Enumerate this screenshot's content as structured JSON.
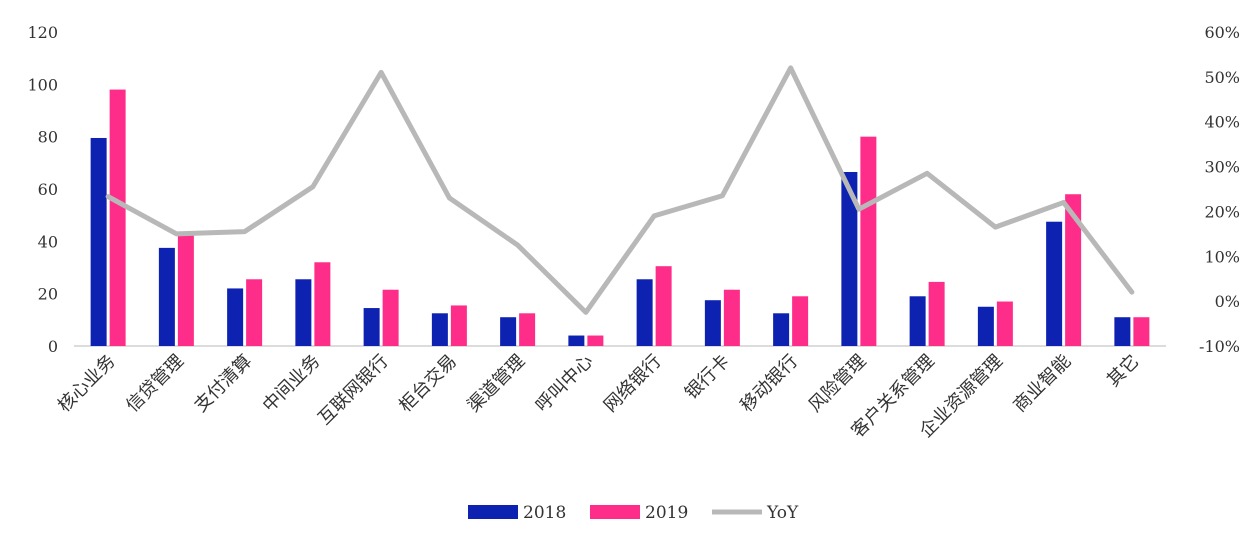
{
  "chart_data": {
    "type": "bar",
    "title": "",
    "xlabel": "",
    "ylabel": "",
    "categories": [
      "核心业务",
      "信贷管理",
      "支付清算",
      "中间业务",
      "互联网银行",
      "柜台交易",
      "渠道管理",
      "呼叫中心",
      "网络银行",
      "银行卡",
      "移动银行",
      "风险管理",
      "客户关系管理",
      "企业资源管理",
      "商业智能",
      "其它"
    ],
    "series": [
      {
        "name": "2018",
        "type": "bar",
        "axis": "left",
        "color": "#0d22b0",
        "values": [
          79.5,
          37.5,
          22,
          25.5,
          14.5,
          12.5,
          11,
          4,
          25.5,
          17.5,
          12.5,
          66.5,
          19,
          15,
          47.5,
          11
        ]
      },
      {
        "name": "2019",
        "type": "bar",
        "axis": "left",
        "color": "#ff2d8a",
        "values": [
          98,
          43,
          25.5,
          32,
          21.5,
          15.5,
          12.5,
          4,
          30.5,
          21.5,
          19,
          80,
          24.5,
          17,
          58,
          11
        ]
      },
      {
        "name": "YoY",
        "type": "line",
        "axis": "right",
        "color": "#b8b8b8",
        "values": [
          23.3,
          15.0,
          15.5,
          25.5,
          51.0,
          23.0,
          12.5,
          -2.5,
          19.0,
          23.5,
          52.0,
          20.5,
          28.5,
          16.5,
          22.0,
          2.0
        ]
      }
    ],
    "y_left": {
      "min": 0,
      "max": 120,
      "step": 20,
      "ticks": [
        "0",
        "20",
        "40",
        "60",
        "80",
        "100",
        "120"
      ]
    },
    "y_right": {
      "min": -10,
      "max": 60,
      "step": 10,
      "ticks": [
        "-10%",
        "0%",
        "10%",
        "20%",
        "30%",
        "40%",
        "50%",
        "60%"
      ]
    },
    "grid": false,
    "legend_position": "bottom-center"
  }
}
